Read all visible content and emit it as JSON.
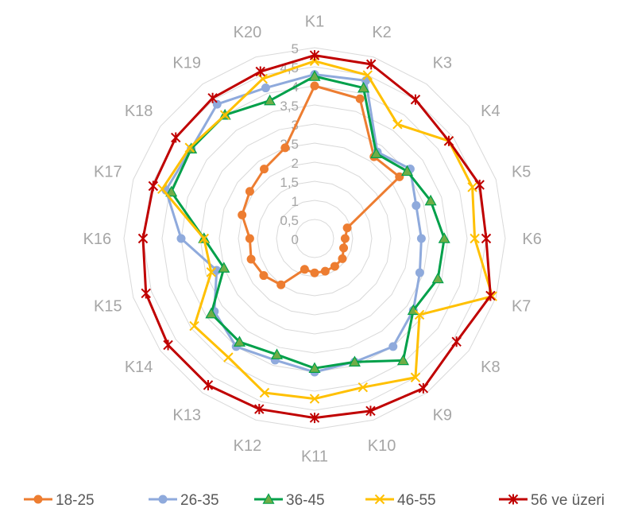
{
  "chart_data": {
    "type": "radar",
    "categories": [
      "K1",
      "K2",
      "K3",
      "K4",
      "K5",
      "K6",
      "K7",
      "K8",
      "K9",
      "K10",
      "K11",
      "K12",
      "K13",
      "K14",
      "K15",
      "K16",
      "K17",
      "K18",
      "K19",
      "K20"
    ],
    "r_ticks": [
      "0",
      "0,5",
      "1",
      "1,5",
      "2",
      "2,5",
      "3",
      "3,5",
      "4",
      "4,5",
      "5"
    ],
    "rlim": [
      0,
      5
    ],
    "grid": true,
    "legend_position": "bottom",
    "series": [
      {
        "name": "18-25",
        "color": "#ED7D31",
        "marker": "circle",
        "values": [
          4.0,
          3.85,
          2.65,
          2.75,
          0.9,
          0.8,
          0.8,
          0.9,
          0.9,
          0.9,
          0.9,
          0.85,
          1.5,
          1.65,
          1.75,
          1.7,
          2.0,
          2.1,
          2.25,
          2.5
        ]
      },
      {
        "name": "26-35",
        "color": "#8FAADC",
        "marker": "circle",
        "values": [
          4.3,
          4.35,
          2.8,
          3.1,
          2.8,
          2.8,
          2.9,
          3.2,
          3.5,
          3.4,
          3.5,
          3.35,
          3.5,
          3.25,
          2.7,
          3.5,
          4.1,
          4.0,
          4.35,
          4.15
        ]
      },
      {
        "name": "36-45",
        "color": "#00A04A",
        "marker": "triangle",
        "values": [
          4.25,
          4.15,
          2.75,
          3.0,
          3.2,
          3.4,
          3.4,
          3.2,
          3.95,
          3.4,
          3.4,
          3.2,
          3.35,
          3.35,
          2.5,
          2.9,
          3.95,
          4.0,
          4.0,
          3.8
        ]
      },
      {
        "name": "46-55",
        "color": "#FFC000",
        "marker": "x",
        "values": [
          4.65,
          4.5,
          3.7,
          4.35,
          4.35,
          4.2,
          4.9,
          3.4,
          4.5,
          4.1,
          4.2,
          4.25,
          3.85,
          3.9,
          2.85,
          2.9,
          4.2,
          4.05,
          4.0,
          4.4
        ]
      },
      {
        "name": "56 ve üzeri",
        "color": "#C00000",
        "marker": "star",
        "values": [
          4.8,
          4.8,
          4.5,
          4.35,
          4.55,
          4.5,
          4.85,
          4.6,
          4.85,
          4.75,
          4.7,
          4.7,
          4.75,
          4.75,
          4.65,
          4.5,
          4.45,
          4.5,
          4.55,
          4.6
        ]
      }
    ]
  }
}
